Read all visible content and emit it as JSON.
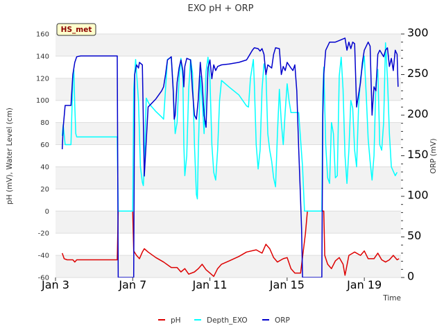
{
  "chart_data": {
    "type": "line",
    "title": "EXO pH + ORP",
    "xlabel": "Time",
    "ylabel_left": "pH (mV), Water Level (cm)",
    "ylabel_right": "ORP (mV)",
    "badge": "HS_met",
    "xlim": [
      3,
      20.9
    ],
    "ylim_left": [
      -60,
      160
    ],
    "ylim_right": [
      0,
      300
    ],
    "x_ticks": [
      {
        "value": 3,
        "label": "Jan 3"
      },
      {
        "value": 7,
        "label": "Jan 7"
      },
      {
        "value": 11,
        "label": "Jan 11"
      },
      {
        "value": 15,
        "label": "Jan 15"
      },
      {
        "value": 19,
        "label": "Jan 19"
      }
    ],
    "y_left_ticks": [
      -60,
      -40,
      -20,
      0,
      20,
      40,
      60,
      80,
      100,
      120,
      140,
      160
    ],
    "y_right_ticks": [
      0,
      50,
      100,
      150,
      200,
      250,
      300
    ],
    "grid": true,
    "legend_position": "bottom",
    "series": [
      {
        "name": "pH",
        "axis": "left",
        "color": "#dd0000",
        "points": [
          [
            3.35,
            -38
          ],
          [
            3.45,
            -43
          ],
          [
            3.6,
            -44
          ],
          [
            3.9,
            -44
          ],
          [
            4.0,
            -46
          ],
          [
            4.1,
            -44
          ],
          [
            4.5,
            -44
          ],
          [
            5.0,
            -44
          ],
          [
            5.5,
            -44
          ],
          [
            6.2,
            -44
          ],
          [
            6.25,
            0
          ],
          [
            6.3,
            0
          ],
          [
            7.0,
            0
          ],
          [
            7.05,
            -36
          ],
          [
            7.2,
            -40
          ],
          [
            7.35,
            -43
          ],
          [
            7.5,
            -37
          ],
          [
            7.6,
            -34
          ],
          [
            7.8,
            -37
          ],
          [
            8.2,
            -42
          ],
          [
            8.6,
            -46
          ],
          [
            9.0,
            -51
          ],
          [
            9.3,
            -51
          ],
          [
            9.5,
            -55
          ],
          [
            9.7,
            -52
          ],
          [
            9.9,
            -57
          ],
          [
            10.2,
            -55
          ],
          [
            10.4,
            -52
          ],
          [
            10.6,
            -48
          ],
          [
            10.8,
            -53
          ],
          [
            11.0,
            -56
          ],
          [
            11.2,
            -59
          ],
          [
            11.4,
            -52
          ],
          [
            11.6,
            -48
          ],
          [
            12.0,
            -45
          ],
          [
            12.5,
            -41
          ],
          [
            12.9,
            -37
          ],
          [
            13.4,
            -35
          ],
          [
            13.7,
            -38
          ],
          [
            13.9,
            -30
          ],
          [
            14.1,
            -34
          ],
          [
            14.3,
            -42
          ],
          [
            14.5,
            -46
          ],
          [
            14.8,
            -43
          ],
          [
            15.0,
            -42
          ],
          [
            15.2,
            -52
          ],
          [
            15.4,
            -56
          ],
          [
            15.7,
            -56
          ],
          [
            15.95,
            -20
          ],
          [
            16.05,
            0
          ],
          [
            16.6,
            0
          ],
          [
            16.9,
            0
          ],
          [
            16.95,
            -40
          ],
          [
            17.1,
            -48
          ],
          [
            17.3,
            -52
          ],
          [
            17.5,
            -45
          ],
          [
            17.7,
            -42
          ],
          [
            17.9,
            -48
          ],
          [
            18.0,
            -58
          ],
          [
            18.2,
            -40
          ],
          [
            18.5,
            -37
          ],
          [
            18.8,
            -40
          ],
          [
            19.0,
            -36
          ],
          [
            19.2,
            -43
          ],
          [
            19.5,
            -43
          ],
          [
            19.7,
            -38
          ],
          [
            19.9,
            -44
          ],
          [
            20.1,
            -46
          ],
          [
            20.3,
            -44
          ],
          [
            20.5,
            -40
          ],
          [
            20.7,
            -44
          ],
          [
            20.8,
            -43
          ]
        ]
      },
      {
        "name": "Depth_EXO",
        "axis": "left",
        "color": "#00ffff",
        "points": [
          [
            3.35,
            68
          ],
          [
            3.4,
            78
          ],
          [
            3.5,
            60
          ],
          [
            3.6,
            60
          ],
          [
            3.8,
            60
          ],
          [
            3.9,
            120
          ],
          [
            3.95,
            128
          ],
          [
            4.0,
            95
          ],
          [
            4.05,
            70
          ],
          [
            4.1,
            67
          ],
          [
            5.0,
            67
          ],
          [
            6.2,
            67
          ],
          [
            6.25,
            0
          ],
          [
            7.0,
            0
          ],
          [
            7.05,
            110
          ],
          [
            7.15,
            137
          ],
          [
            7.3,
            100
          ],
          [
            7.4,
            40
          ],
          [
            7.5,
            26
          ],
          [
            7.55,
            23
          ],
          [
            7.6,
            40
          ],
          [
            7.7,
            102
          ],
          [
            7.85,
            97
          ],
          [
            8.2,
            90
          ],
          [
            8.5,
            85
          ],
          [
            8.6,
            83
          ],
          [
            8.8,
            137
          ],
          [
            9.0,
            139
          ],
          [
            9.1,
            110
          ],
          [
            9.2,
            70
          ],
          [
            9.3,
            80
          ],
          [
            9.4,
            120
          ],
          [
            9.5,
            138
          ],
          [
            9.6,
            120
          ],
          [
            9.65,
            60
          ],
          [
            9.7,
            32
          ],
          [
            9.8,
            50
          ],
          [
            9.9,
            110
          ],
          [
            10.0,
            137
          ],
          [
            10.1,
            125
          ],
          [
            10.2,
            60
          ],
          [
            10.3,
            15
          ],
          [
            10.35,
            11
          ],
          [
            10.4,
            55
          ],
          [
            10.5,
            122
          ],
          [
            10.6,
            100
          ],
          [
            10.7,
            70
          ],
          [
            10.8,
            126
          ],
          [
            10.9,
            139
          ],
          [
            11.0,
            120
          ],
          [
            11.1,
            60
          ],
          [
            11.2,
            35
          ],
          [
            11.3,
            28
          ],
          [
            11.4,
            55
          ],
          [
            11.5,
            100
          ],
          [
            11.6,
            118
          ],
          [
            12.0,
            112
          ],
          [
            12.5,
            105
          ],
          [
            12.9,
            95
          ],
          [
            13.0,
            94
          ],
          [
            13.1,
            120
          ],
          [
            13.25,
            137
          ],
          [
            13.3,
            115
          ],
          [
            13.4,
            60
          ],
          [
            13.5,
            38
          ],
          [
            13.6,
            55
          ],
          [
            13.7,
            110
          ],
          [
            13.8,
            133
          ],
          [
            13.9,
            125
          ],
          [
            14.0,
            70
          ],
          [
            14.1,
            55
          ],
          [
            14.2,
            45
          ],
          [
            14.3,
            30
          ],
          [
            14.4,
            22
          ],
          [
            14.5,
            70
          ],
          [
            14.6,
            110
          ],
          [
            14.7,
            80
          ],
          [
            14.8,
            60
          ],
          [
            14.9,
            90
          ],
          [
            15.0,
            115
          ],
          [
            15.1,
            100
          ],
          [
            15.2,
            89
          ],
          [
            15.6,
            89
          ],
          [
            15.8,
            40
          ],
          [
            15.9,
            0
          ],
          [
            16.8,
            0
          ],
          [
            16.85,
            105
          ],
          [
            16.9,
            130
          ],
          [
            17.0,
            60
          ],
          [
            17.1,
            30
          ],
          [
            17.2,
            25
          ],
          [
            17.3,
            80
          ],
          [
            17.4,
            70
          ],
          [
            17.5,
            30
          ],
          [
            17.6,
            32
          ],
          [
            17.7,
            122
          ],
          [
            17.8,
            139
          ],
          [
            17.9,
            110
          ],
          [
            18.0,
            50
          ],
          [
            18.1,
            25
          ],
          [
            18.2,
            55
          ],
          [
            18.3,
            100
          ],
          [
            18.4,
            93
          ],
          [
            18.5,
            55
          ],
          [
            18.6,
            40
          ],
          [
            18.7,
            93
          ],
          [
            18.8,
            120
          ],
          [
            19.0,
            140
          ],
          [
            19.1,
            105
          ],
          [
            19.2,
            65
          ],
          [
            19.3,
            45
          ],
          [
            19.4,
            28
          ],
          [
            19.5,
            50
          ],
          [
            19.6,
            115
          ],
          [
            19.7,
            128
          ],
          [
            19.8,
            60
          ],
          [
            19.9,
            55
          ],
          [
            20.0,
            80
          ],
          [
            20.1,
            152
          ],
          [
            20.2,
            120
          ],
          [
            20.3,
            70
          ],
          [
            20.4,
            40
          ],
          [
            20.5,
            36
          ],
          [
            20.6,
            32
          ],
          [
            20.7,
            35
          ]
        ]
      },
      {
        "name": "ORP",
        "axis": "right",
        "color": "#0000cc",
        "points": [
          [
            3.35,
            158
          ],
          [
            3.4,
            185
          ],
          [
            3.5,
            212
          ],
          [
            3.8,
            212
          ],
          [
            3.9,
            250
          ],
          [
            4.0,
            265
          ],
          [
            4.1,
            272
          ],
          [
            4.3,
            273
          ],
          [
            5.0,
            273
          ],
          [
            6.0,
            273
          ],
          [
            6.2,
            273
          ],
          [
            6.25,
            0
          ],
          [
            7.0,
            0
          ],
          [
            7.05,
            0
          ],
          [
            7.1,
            250
          ],
          [
            7.2,
            262
          ],
          [
            7.3,
            258
          ],
          [
            7.35,
            265
          ],
          [
            7.5,
            262
          ],
          [
            7.6,
            125
          ],
          [
            7.8,
            210
          ],
          [
            8.2,
            220
          ],
          [
            8.5,
            230
          ],
          [
            8.6,
            235
          ],
          [
            8.7,
            250
          ],
          [
            8.8,
            268
          ],
          [
            9.0,
            272
          ],
          [
            9.1,
            230
          ],
          [
            9.15,
            195
          ],
          [
            9.2,
            200
          ],
          [
            9.3,
            240
          ],
          [
            9.4,
            258
          ],
          [
            9.5,
            268
          ],
          [
            9.6,
            255
          ],
          [
            9.65,
            235
          ],
          [
            9.7,
            260
          ],
          [
            9.8,
            270
          ],
          [
            10.0,
            268
          ],
          [
            10.1,
            230
          ],
          [
            10.2,
            200
          ],
          [
            10.3,
            195
          ],
          [
            10.4,
            220
          ],
          [
            10.5,
            265
          ],
          [
            10.6,
            240
          ],
          [
            10.7,
            200
          ],
          [
            10.8,
            185
          ],
          [
            10.9,
            258
          ],
          [
            11.0,
            268
          ],
          [
            11.1,
            245
          ],
          [
            11.2,
            262
          ],
          [
            11.3,
            255
          ],
          [
            11.4,
            260
          ],
          [
            11.6,
            262
          ],
          [
            12.0,
            263
          ],
          [
            12.5,
            265
          ],
          [
            12.9,
            268
          ],
          [
            13.0,
            272
          ],
          [
            13.2,
            280
          ],
          [
            13.3,
            283
          ],
          [
            13.5,
            282
          ],
          [
            13.6,
            279
          ],
          [
            13.7,
            282
          ],
          [
            13.8,
            275
          ],
          [
            13.9,
            250
          ],
          [
            14.0,
            262
          ],
          [
            14.2,
            258
          ],
          [
            14.3,
            275
          ],
          [
            14.4,
            283
          ],
          [
            14.6,
            282
          ],
          [
            14.7,
            250
          ],
          [
            14.8,
            260
          ],
          [
            14.9,
            255
          ],
          [
            15.0,
            265
          ],
          [
            15.2,
            258
          ],
          [
            15.3,
            255
          ],
          [
            15.4,
            262
          ],
          [
            15.5,
            230
          ],
          [
            15.6,
            160
          ],
          [
            15.7,
            95
          ],
          [
            15.75,
            60
          ],
          [
            15.8,
            0
          ],
          [
            16.8,
            0
          ],
          [
            16.85,
            200
          ],
          [
            16.9,
            250
          ],
          [
            17.0,
            280
          ],
          [
            17.2,
            290
          ],
          [
            17.5,
            290
          ],
          [
            17.7,
            292
          ],
          [
            18.0,
            295
          ],
          [
            18.1,
            280
          ],
          [
            18.2,
            290
          ],
          [
            18.3,
            282
          ],
          [
            18.4,
            290
          ],
          [
            18.5,
            288
          ],
          [
            18.6,
            210
          ],
          [
            18.7,
            225
          ],
          [
            18.8,
            240
          ],
          [
            18.9,
            265
          ],
          [
            19.0,
            280
          ],
          [
            19.2,
            290
          ],
          [
            19.3,
            285
          ],
          [
            19.4,
            200
          ],
          [
            19.5,
            235
          ],
          [
            19.6,
            230
          ],
          [
            19.7,
            275
          ],
          [
            19.8,
            280
          ],
          [
            20.0,
            272
          ],
          [
            20.1,
            280
          ],
          [
            20.2,
            283
          ],
          [
            20.3,
            260
          ],
          [
            20.4,
            270
          ],
          [
            20.5,
            255
          ],
          [
            20.6,
            280
          ],
          [
            20.7,
            275
          ],
          [
            20.75,
            235
          ]
        ]
      }
    ]
  }
}
